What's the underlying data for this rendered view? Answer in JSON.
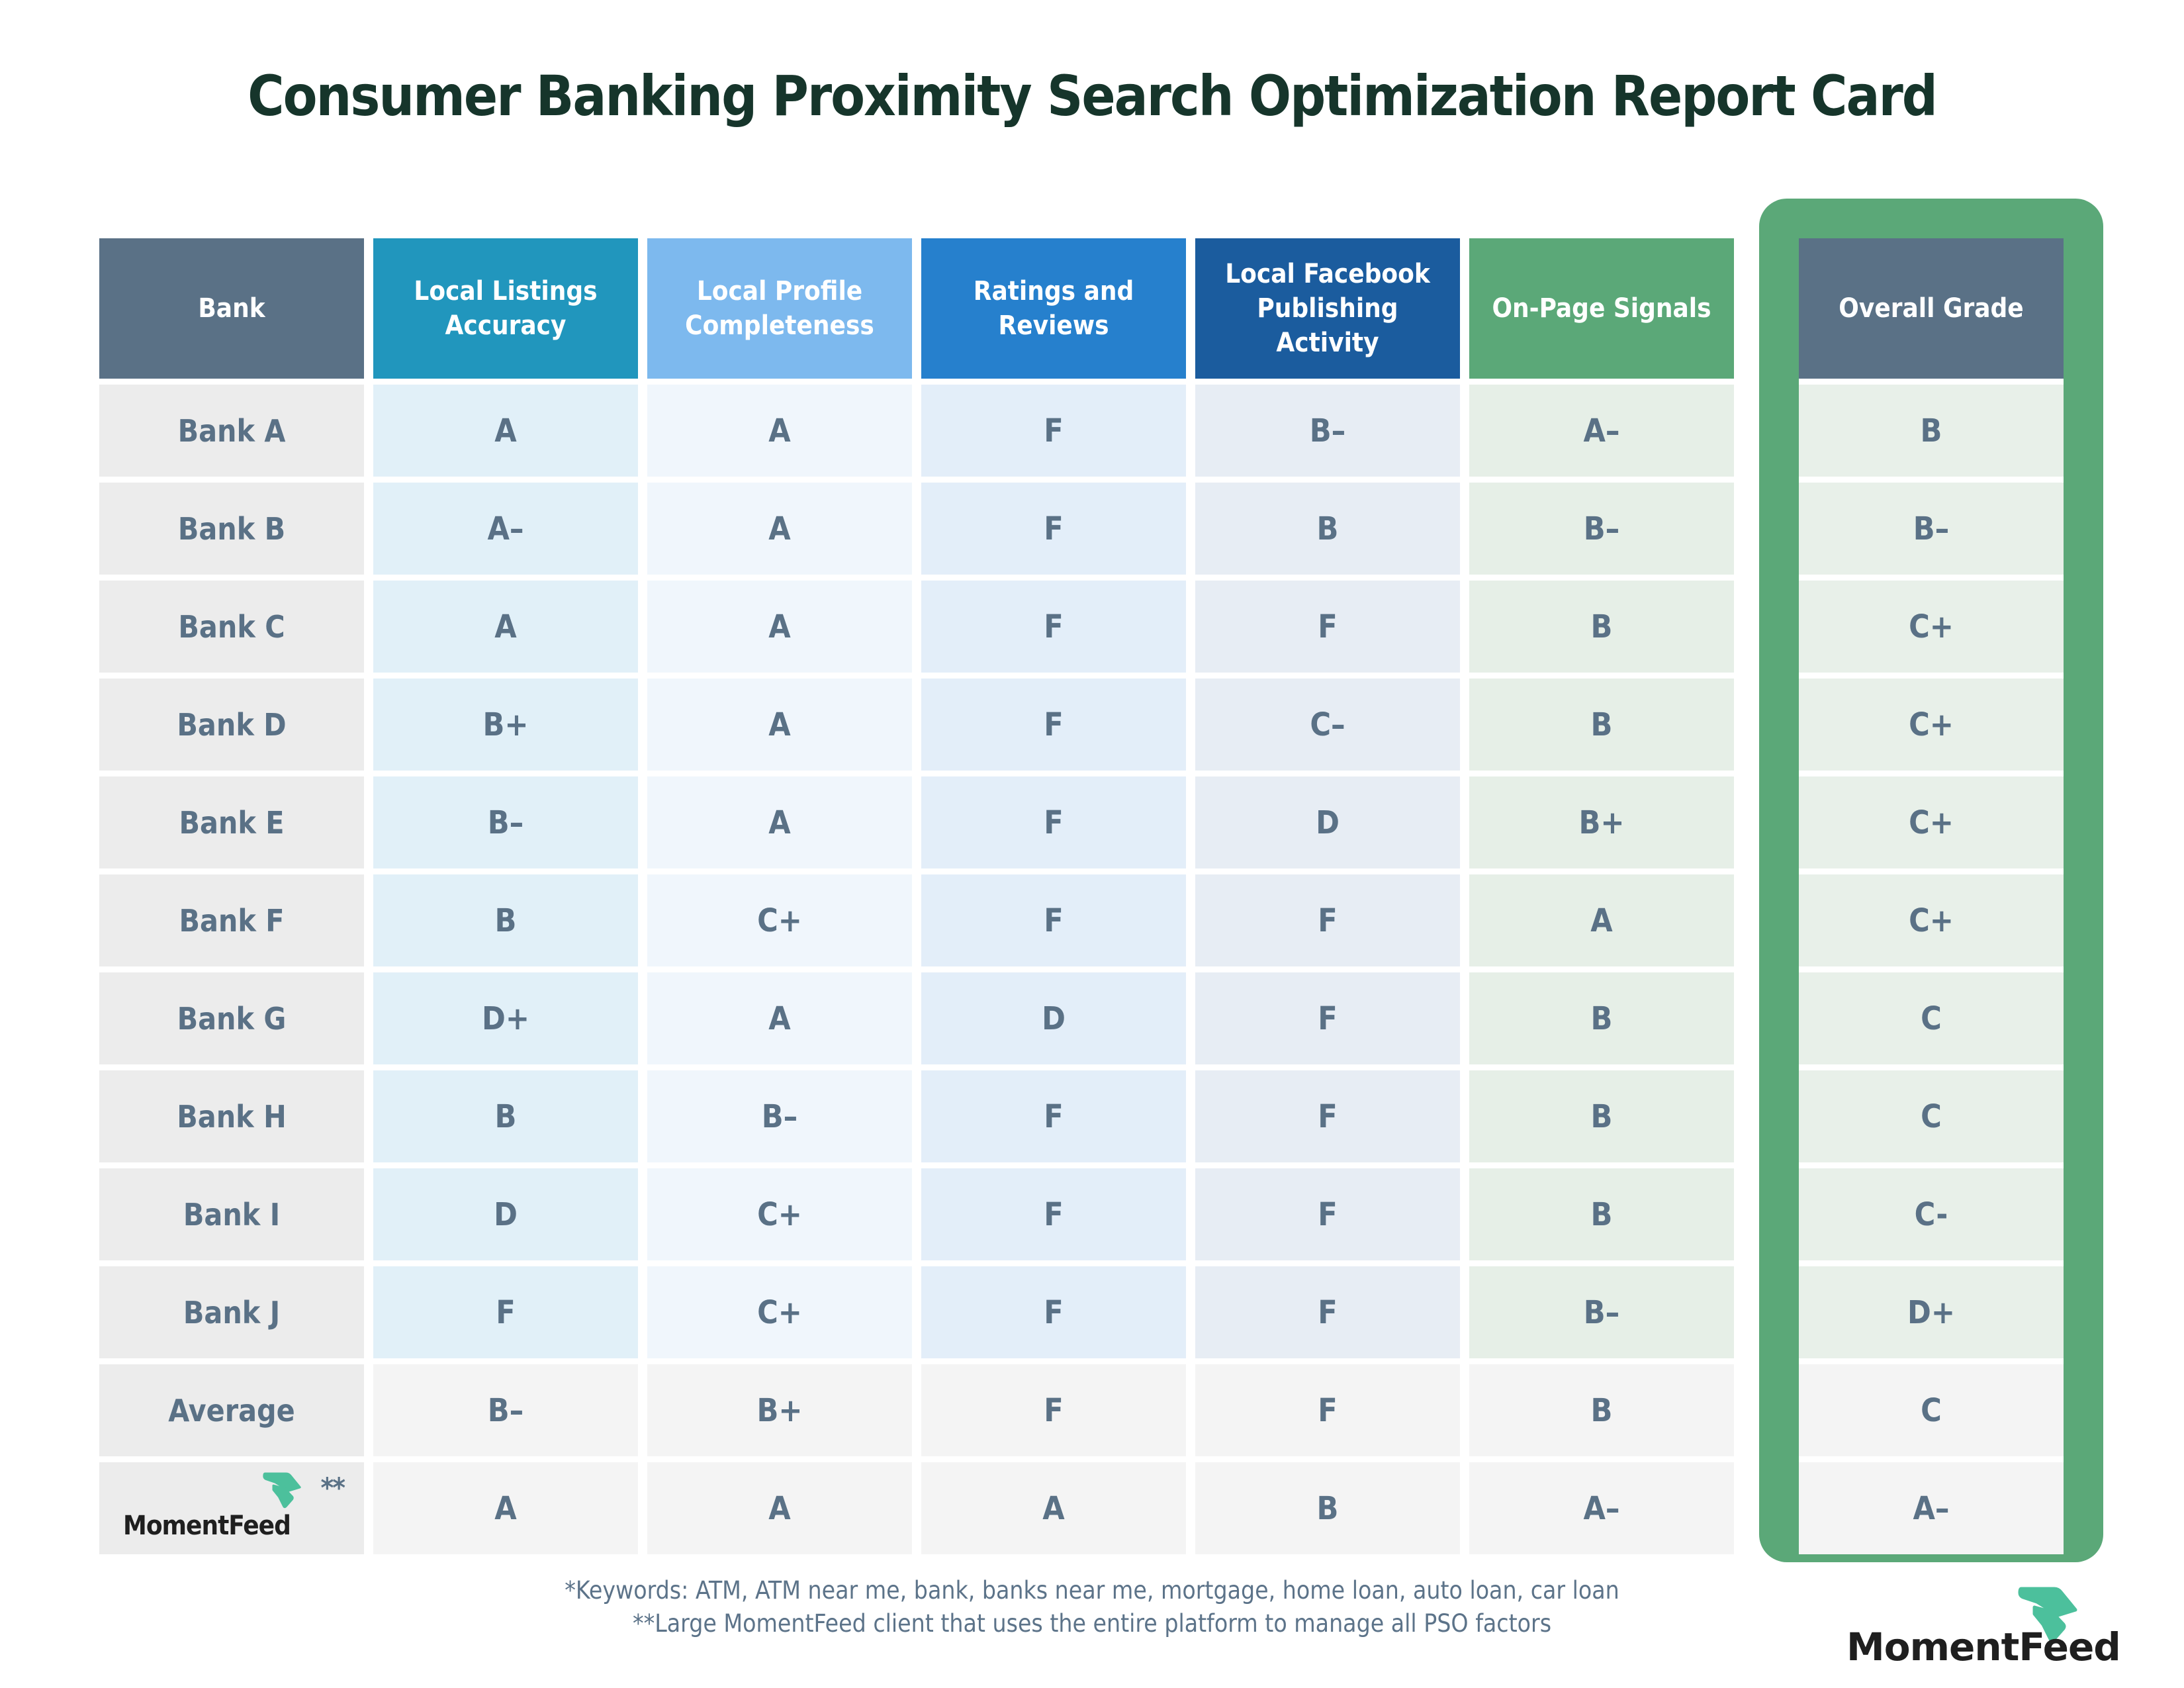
{
  "title": "Consumer Banking Proximity Search Optimization Report Card",
  "colors": {
    "title_text": "#16352b",
    "footnote_text": "#5c7389",
    "grade_text": "#5a7186",
    "highlight_frame": "#5ba878",
    "muted_cell_bg": "#f4f4f4",
    "bank_cell_bg": "#ececec",
    "logo_green": "#4cc09c",
    "logo_text": "#1f1f1f"
  },
  "table": {
    "columns": [
      {
        "id": "bank",
        "label": "Bank",
        "header_bg": "#5a7186",
        "cell_bg": "#ececec"
      },
      {
        "id": "local-listings-accuracy",
        "label": "Local Listings Accuracy",
        "header_bg": "#2196bd",
        "cell_bg": "#e1f0f8"
      },
      {
        "id": "local-profile-completeness",
        "label": "Local Profile Completeness",
        "header_bg": "#7db9ee",
        "cell_bg": "#f0f6fc"
      },
      {
        "id": "ratings-and-reviews",
        "label": "Ratings and Reviews",
        "header_bg": "#2680cd",
        "cell_bg": "#e3eef9"
      },
      {
        "id": "local-facebook-publishing-activity",
        "label": "Local Facebook Publishing Activity",
        "header_bg": "#1b5c9e",
        "cell_bg": "#e7edf4"
      },
      {
        "id": "on-page-signals",
        "label": "On-Page Signals",
        "header_bg": "#5ba878",
        "cell_bg": "#e6efe7"
      },
      {
        "id": "overall-grade",
        "label": "Overall Grade",
        "header_bg": "#5a7186",
        "cell_bg": "#e8f0e9",
        "highlighted": true
      }
    ],
    "rows": [
      {
        "bank": "Bank A",
        "grades": [
          "A",
          "A",
          "F",
          "B–",
          "A–",
          "B"
        ]
      },
      {
        "bank": "Bank B",
        "grades": [
          "A–",
          "A",
          "F",
          "B",
          "B–",
          "B–"
        ]
      },
      {
        "bank": "Bank C",
        "grades": [
          "A",
          "A",
          "F",
          "F",
          "B",
          "C+"
        ]
      },
      {
        "bank": "Bank D",
        "grades": [
          "B+",
          "A",
          "F",
          "C–",
          "B",
          "C+"
        ]
      },
      {
        "bank": "Bank E",
        "grades": [
          "B–",
          "A",
          "F",
          "D",
          "B+",
          "C+"
        ]
      },
      {
        "bank": "Bank F",
        "grades": [
          "B",
          "C+",
          "F",
          "F",
          "A",
          "C+"
        ]
      },
      {
        "bank": "Bank G",
        "grades": [
          "D+",
          "A",
          "D",
          "F",
          "B",
          "C"
        ]
      },
      {
        "bank": "Bank H",
        "grades": [
          "B",
          "B–",
          "F",
          "F",
          "B",
          "C"
        ]
      },
      {
        "bank": "Bank I",
        "grades": [
          "D",
          "C+",
          "F",
          "F",
          "B",
          "C-"
        ]
      },
      {
        "bank": "Bank J",
        "grades": [
          "F",
          "C+",
          "F",
          "F",
          "B–",
          "D+"
        ]
      },
      {
        "bank": "Average",
        "grades": [
          "B–",
          "B+",
          "F",
          "F",
          "B",
          "C"
        ],
        "muted": true
      },
      {
        "bank": "MomentFeed",
        "is_logo": true,
        "footnote_marker": "**",
        "grades": [
          "A",
          "A",
          "A",
          "B",
          "A–",
          "A–"
        ],
        "muted": true
      }
    ]
  },
  "chart_data": {
    "type": "table",
    "title": "Consumer Banking Proximity Search Optimization Report Card",
    "columns": [
      "Bank",
      "Local Listings Accuracy",
      "Local Profile Completeness",
      "Ratings and Reviews",
      "Local Facebook Publishing Activity",
      "On-Page Signals",
      "Overall Grade"
    ],
    "rows": [
      [
        "Bank A",
        "A",
        "A",
        "F",
        "B–",
        "A–",
        "B"
      ],
      [
        "Bank B",
        "A–",
        "A",
        "F",
        "B",
        "B–",
        "B–"
      ],
      [
        "Bank C",
        "A",
        "A",
        "F",
        "F",
        "B",
        "C+"
      ],
      [
        "Bank D",
        "B+",
        "A",
        "F",
        "C–",
        "B",
        "C+"
      ],
      [
        "Bank E",
        "B–",
        "A",
        "F",
        "D",
        "B+",
        "C+"
      ],
      [
        "Bank F",
        "B",
        "C+",
        "F",
        "F",
        "A",
        "C+"
      ],
      [
        "Bank G",
        "D+",
        "A",
        "D",
        "F",
        "B",
        "C"
      ],
      [
        "Bank H",
        "B",
        "B–",
        "F",
        "F",
        "B",
        "C"
      ],
      [
        "Bank I",
        "D",
        "C+",
        "F",
        "F",
        "B",
        "C-"
      ],
      [
        "Bank J",
        "F",
        "C+",
        "F",
        "F",
        "B–",
        "D+"
      ],
      [
        "Average",
        "B–",
        "B+",
        "F",
        "F",
        "B",
        "C"
      ],
      [
        "MomentFeed**",
        "A",
        "A",
        "A",
        "B",
        "A–",
        "A–"
      ]
    ],
    "highlighted_column": "Overall Grade"
  },
  "footnotes": [
    "*Keywords: ATM, ATM near me, bank, banks near me, mortgage, home loan, auto loan, car loan",
    "**Large MomentFeed client that uses the entire platform to manage all PSO factors"
  ],
  "branding": {
    "name": "MomentFeed"
  }
}
